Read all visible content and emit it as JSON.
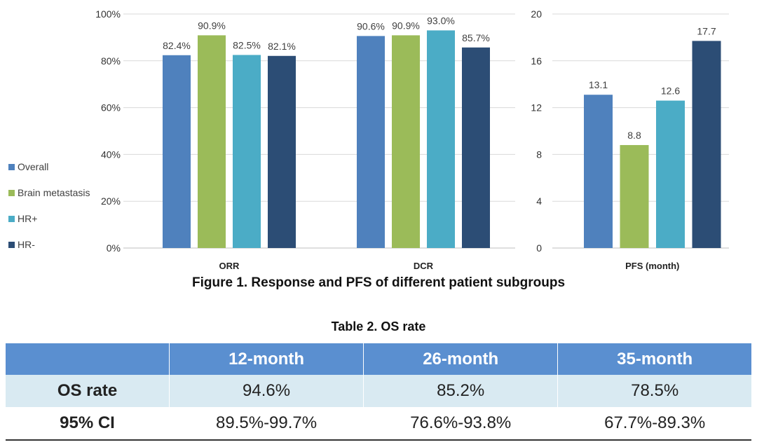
{
  "chart_data": [
    {
      "type": "bar",
      "categories": [
        "ORR",
        "DCR"
      ],
      "y_ticks": [
        "0%",
        "20%",
        "40%",
        "60%",
        "80%",
        "100%"
      ],
      "ylim": [
        0,
        100
      ],
      "series": [
        {
          "name": "Overall",
          "values": [
            82.4,
            90.6
          ],
          "labels": [
            "82.4%",
            "90.6%"
          ],
          "color": "#4f81bd"
        },
        {
          "name": "Brain metastasis",
          "values": [
            90.9,
            90.9
          ],
          "labels": [
            "90.9%",
            "90.9%"
          ],
          "color": "#9bbb59"
        },
        {
          "name": "HR+",
          "values": [
            82.5,
            93.0
          ],
          "labels": [
            "82.5%",
            "93.0%"
          ],
          "color": "#4bacc6"
        },
        {
          "name": "HR-",
          "values": [
            82.1,
            85.7
          ],
          "labels": [
            "82.1%",
            "85.7%"
          ],
          "color": "#2c4d75"
        }
      ],
      "legend_position": "left"
    },
    {
      "type": "bar",
      "categories": [
        "PFS (month)"
      ],
      "y_ticks": [
        "0",
        "4",
        "8",
        "12",
        "16",
        "20"
      ],
      "ylim": [
        0,
        20
      ],
      "series": [
        {
          "name": "Overall",
          "values": [
            13.1
          ],
          "labels": [
            "13.1"
          ],
          "color": "#4f81bd"
        },
        {
          "name": "Brain metastasis",
          "values": [
            8.8
          ],
          "labels": [
            "8.8"
          ],
          "color": "#9bbb59"
        },
        {
          "name": "HR+",
          "values": [
            12.6
          ],
          "labels": [
            "12.6"
          ],
          "color": "#4bacc6"
        },
        {
          "name": "HR-",
          "values": [
            17.7
          ],
          "labels": [
            "17.7"
          ],
          "color": "#2c4d75"
        }
      ]
    }
  ],
  "figure_caption": "Figure 1. Response and PFS of different patient subgroups",
  "table": {
    "title": "Table 2. OS rate",
    "headers": [
      "",
      "12-month",
      "26-month",
      "35-month"
    ],
    "rows": [
      [
        "OS rate",
        "94.6%",
        "85.2%",
        "78.5%"
      ],
      [
        "95% CI",
        "89.5%-99.7%",
        "76.6%-93.8%",
        "67.7%-89.3%"
      ]
    ]
  }
}
